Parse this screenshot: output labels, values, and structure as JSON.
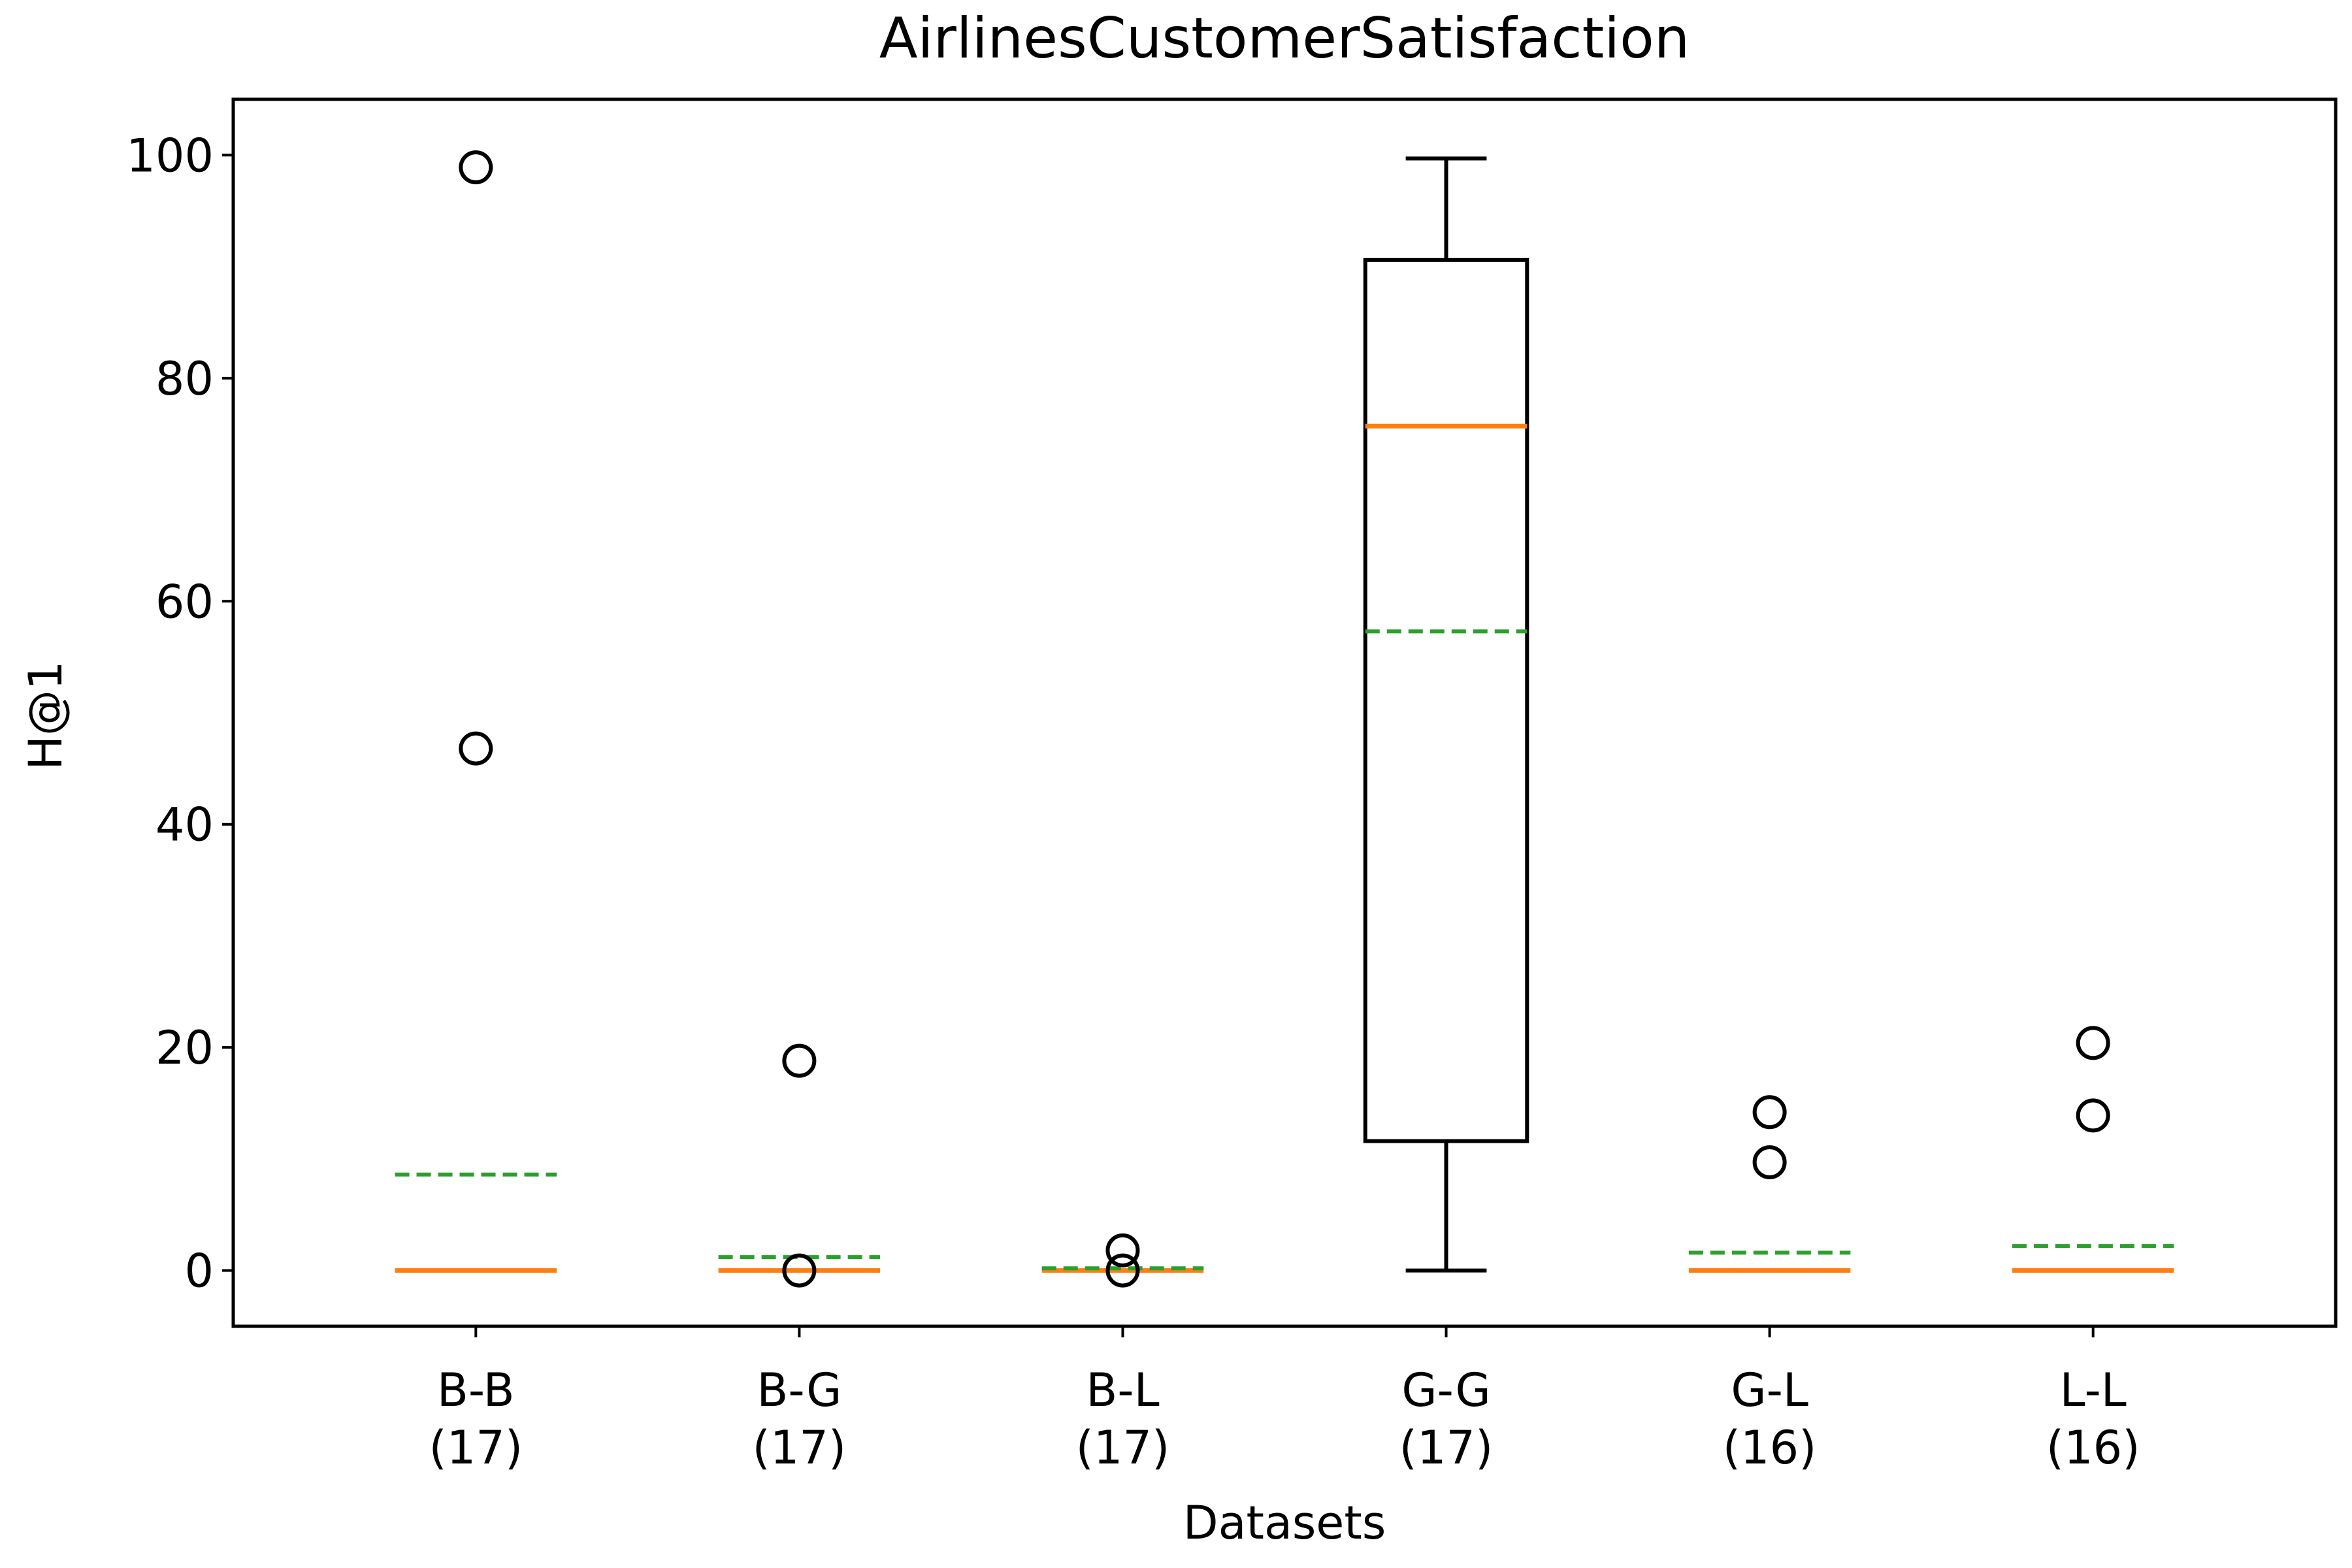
{
  "chart_data": {
    "type": "box",
    "title": "AirlinesCustomerSatisfaction",
    "xlabel": "Datasets",
    "ylabel": "H@1",
    "ylim": [
      -5,
      105
    ],
    "yticks": [
      0,
      20,
      40,
      60,
      80,
      100
    ],
    "grid": false,
    "legend": null,
    "colors": {
      "box": "#000000",
      "median": "#ff7f0e",
      "mean": "#2ca02c"
    },
    "categories": [
      {
        "label": "B-B",
        "count": "(17)",
        "whisker_low": 0,
        "q1": 0,
        "median": 0,
        "q3": 0,
        "whisker_high": 0,
        "mean": 8.6,
        "outliers": [
          46.8,
          98.9
        ]
      },
      {
        "label": "B-G",
        "count": "(17)",
        "whisker_low": 0,
        "q1": 0,
        "median": 0,
        "q3": 0,
        "whisker_high": 0,
        "mean": 1.2,
        "outliers": [
          0,
          18.8
        ]
      },
      {
        "label": "B-L",
        "count": "(17)",
        "whisker_low": 0,
        "q1": 0,
        "median": 0,
        "q3": 0,
        "whisker_high": 0,
        "mean": 0.2,
        "outliers": [
          0,
          1.8
        ]
      },
      {
        "label": "G-G",
        "count": "(17)",
        "whisker_low": 0,
        "q1": 11.6,
        "median": 75.7,
        "q3": 90.6,
        "whisker_high": 99.7,
        "mean": 57.3,
        "outliers": []
      },
      {
        "label": "G-L",
        "count": "(16)",
        "whisker_low": 0,
        "q1": 0,
        "median": 0,
        "q3": 0,
        "whisker_high": 0,
        "mean": 1.6,
        "outliers": [
          9.7,
          14.2
        ]
      },
      {
        "label": "L-L",
        "count": "(16)",
        "whisker_low": 0,
        "q1": 0,
        "median": 0,
        "q3": 0,
        "whisker_high": 0,
        "mean": 2.2,
        "outliers": [
          13.9,
          20.4
        ]
      }
    ]
  }
}
